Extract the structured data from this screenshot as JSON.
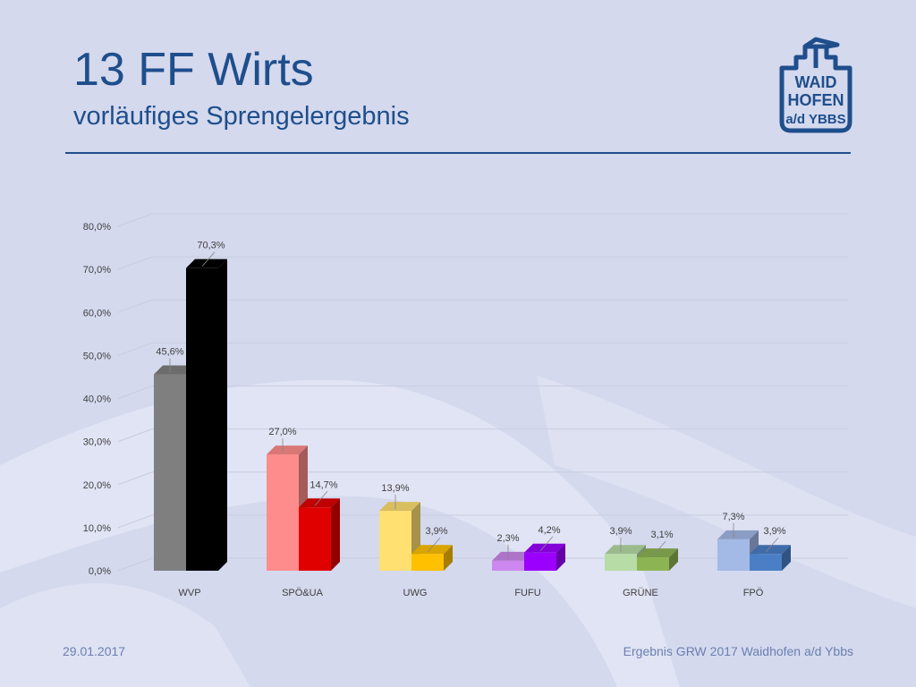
{
  "title": "13 FF Wirts",
  "subtitle": "vorläufiges Sprengelergebnis",
  "footer": {
    "date": "29.01.2017",
    "source": "Ergebnis GRW 2017 Waidhofen a/d Ybbs"
  },
  "logo": {
    "lines": [
      "WAID",
      "HOFEN",
      "a/d YBBS"
    ],
    "color": "#1f4e8c"
  },
  "chart_data": {
    "type": "bar",
    "style": "3d-clustered",
    "categories": [
      "WVP",
      "SPÖ&UA",
      "UWG",
      "FUFU",
      "GRÜNE",
      "FPÖ"
    ],
    "series": [
      {
        "values": [
          45.6,
          27.0,
          13.9,
          2.3,
          3.9,
          7.3
        ],
        "labels": [
          "45,6%",
          "27,0%",
          "13,9%",
          "2,3%",
          "3,9%",
          "7,3%"
        ],
        "colors": [
          "#7f7f7f",
          "#ff8c8c",
          "#ffe070",
          "#cc88ee",
          "#b7dca6",
          "#a3b9e6"
        ]
      },
      {
        "values": [
          70.3,
          14.7,
          3.9,
          4.2,
          3.1,
          3.9
        ],
        "labels": [
          "70,3%",
          "14,7%",
          "3,9%",
          "4,2%",
          "3,1%",
          "3,9%"
        ],
        "colors": [
          "#000000",
          "#e00000",
          "#ffc000",
          "#9b00ff",
          "#8db453",
          "#4a7fc6"
        ]
      }
    ],
    "ylim": [
      0,
      80
    ],
    "yticks": [
      0,
      10,
      20,
      30,
      40,
      50,
      60,
      70,
      80
    ],
    "ytick_labels": [
      "0,0%",
      "10,0%",
      "20,0%",
      "30,0%",
      "40,0%",
      "50,0%",
      "60,0%",
      "70,0%",
      "80,0%"
    ],
    "grid": true
  }
}
